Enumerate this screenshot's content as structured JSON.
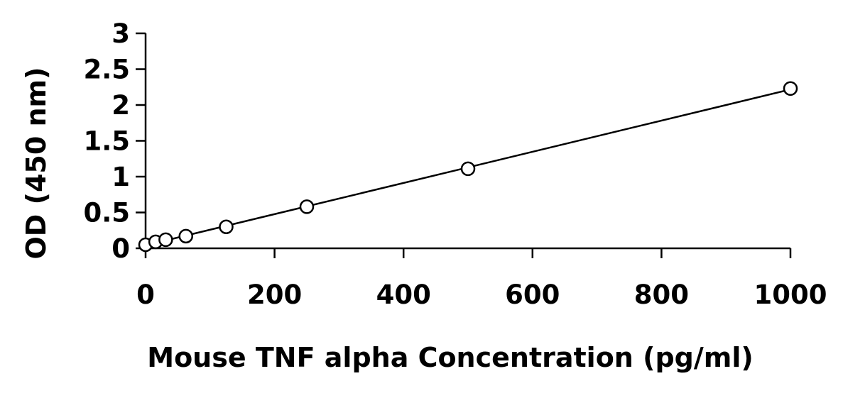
{
  "chart_data": {
    "type": "scatter",
    "title": "",
    "xlabel": "Mouse TNF alpha Concentration (pg/ml)",
    "ylabel": "OD (450 nm)",
    "xlim": [
      0,
      1000
    ],
    "ylim": [
      0,
      3
    ],
    "x_ticks": [
      0,
      200,
      400,
      600,
      800,
      1000
    ],
    "y_ticks": [
      0,
      0.5,
      1,
      1.5,
      2,
      2.5,
      3
    ],
    "grid": false,
    "marker": "open-circle",
    "trendline": "linear",
    "series": [
      {
        "x": [
          0,
          15.6,
          31.25,
          62.5,
          125,
          250,
          500,
          1000
        ],
        "y": [
          0.05,
          0.09,
          0.12,
          0.17,
          0.3,
          0.58,
          1.11,
          2.23
        ]
      }
    ]
  }
}
